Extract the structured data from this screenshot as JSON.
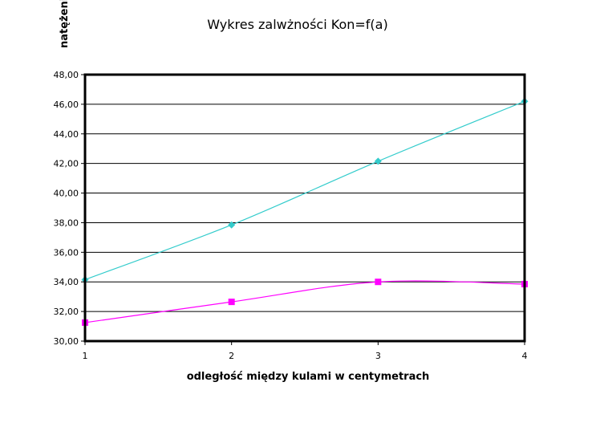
{
  "chart_data": {
    "type": "line",
    "title": "Wykres zalwżności Kon=f(a)",
    "xlabel": "odległość między kulami w centymetrach",
    "ylabel": "natężenie kryt",
    "categories": [
      "1",
      "2",
      "3",
      "4"
    ],
    "x": [
      1,
      2,
      3,
      4
    ],
    "ylim": [
      30,
      48
    ],
    "yticks": [
      "30,00",
      "32,00",
      "34,00",
      "36,00",
      "38,00",
      "40,00",
      "42,00",
      "44,00",
      "46,00",
      "48,00"
    ],
    "grid": true,
    "smooth": true,
    "series": [
      {
        "values": [
          34.15,
          37.85,
          42.15,
          46.2
        ],
        "color": "#33cccc",
        "marker": "diamond"
      },
      {
        "values": [
          31.25,
          32.65,
          34.0,
          33.85
        ],
        "color": "#ff00ff",
        "marker": "square"
      }
    ]
  }
}
